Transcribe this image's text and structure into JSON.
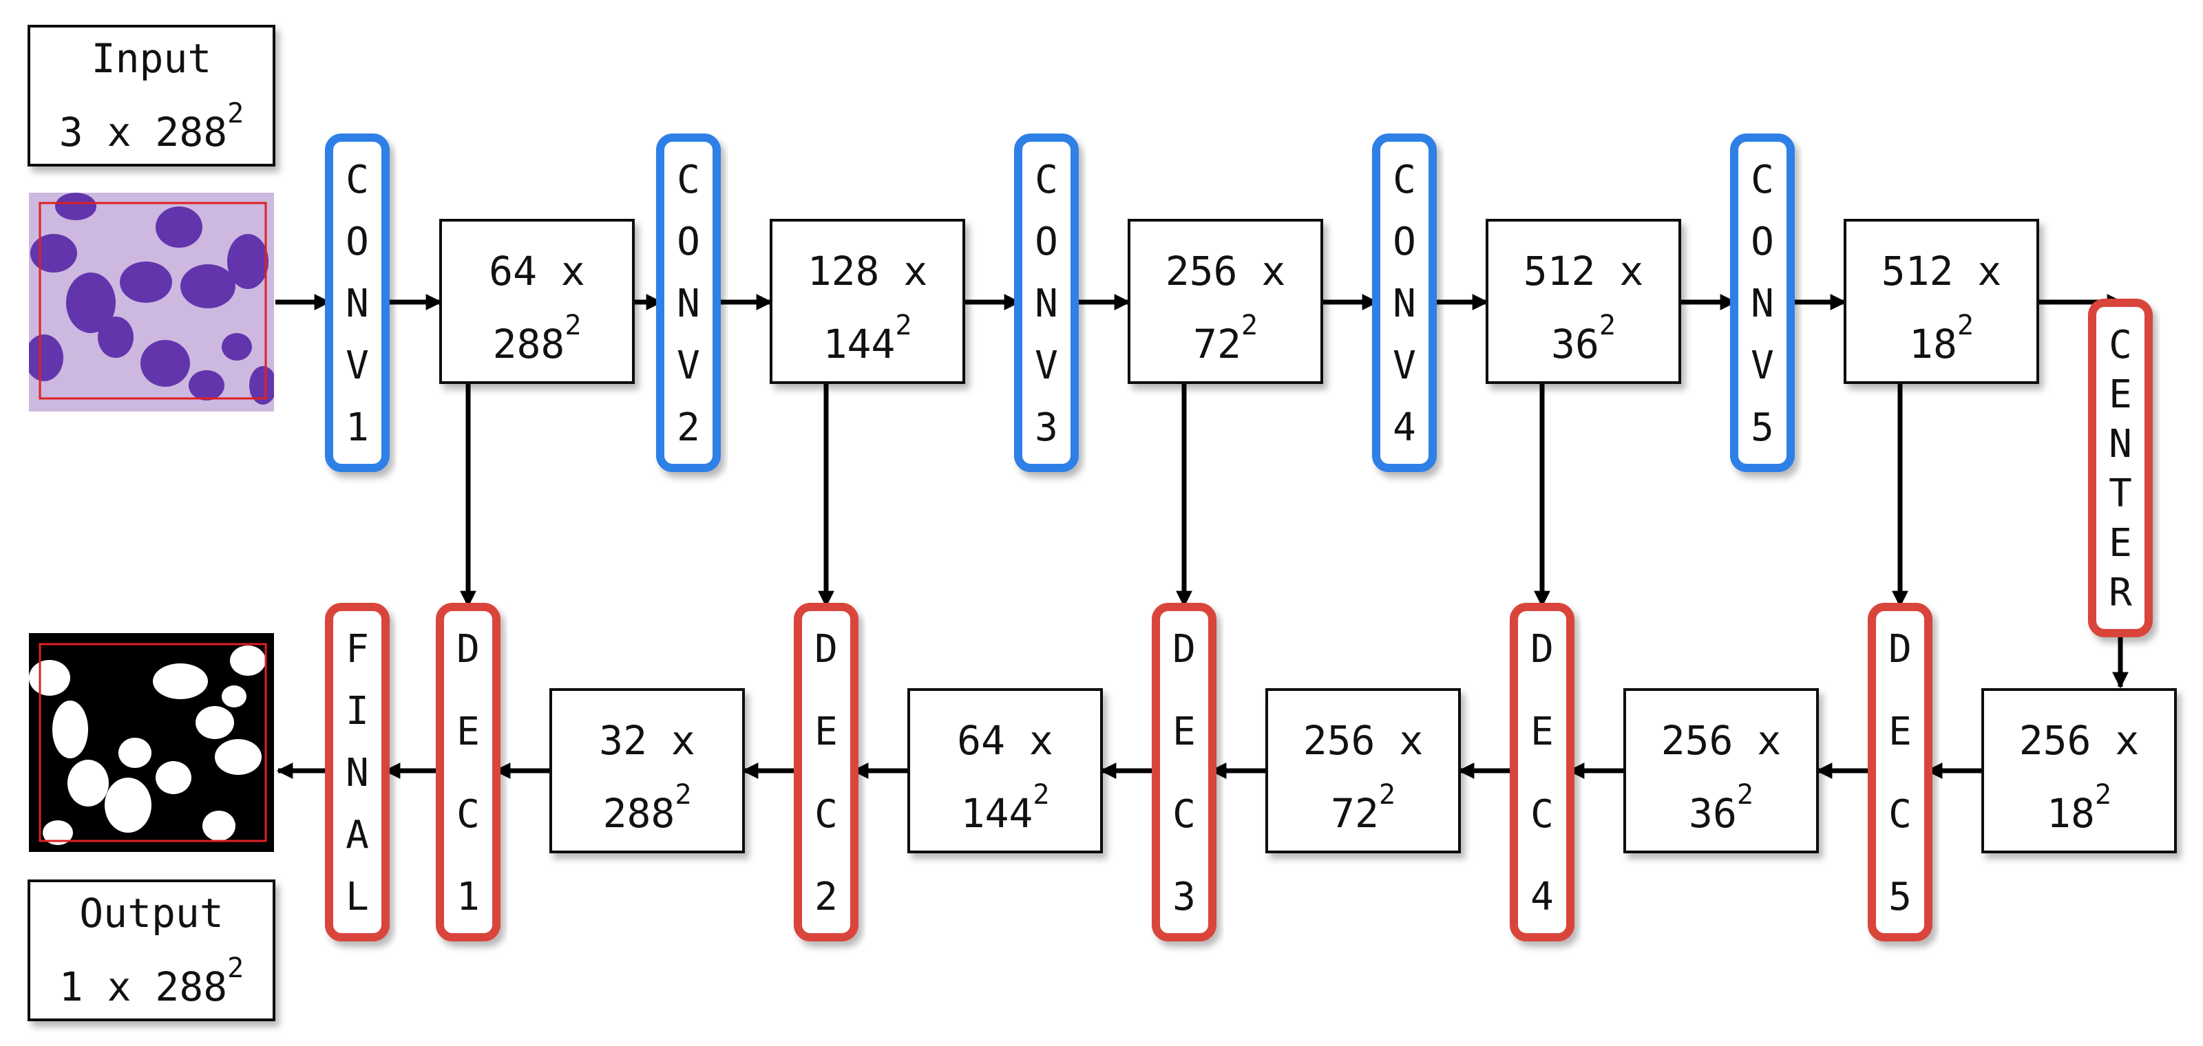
{
  "colors": {
    "encoder": "#2f80e6",
    "decoder": "#d9443a",
    "box_border": "#111111",
    "arrow": "#000000",
    "crop_frame": "#e02020",
    "cell_nucleus": "#5a2aa8",
    "cell_background": "#cdb8e0",
    "mask_background": "#000000",
    "mask_foreground": "#ffffff"
  },
  "input": {
    "title": "Input",
    "shape_base": "3 x 288",
    "shape_exp": "2"
  },
  "output": {
    "title": "Output",
    "shape_base": "1 x 288",
    "shape_exp": "2"
  },
  "encoder_blocks": [
    {
      "letters": [
        "C",
        "O",
        "N",
        "V",
        "1"
      ]
    },
    {
      "letters": [
        "C",
        "O",
        "N",
        "V",
        "2"
      ]
    },
    {
      "letters": [
        "C",
        "O",
        "N",
        "V",
        "3"
      ]
    },
    {
      "letters": [
        "C",
        "O",
        "N",
        "V",
        "4"
      ]
    },
    {
      "letters": [
        "C",
        "O",
        "N",
        "V",
        "5"
      ]
    }
  ],
  "center_block": {
    "letters": [
      "C",
      "E",
      "N",
      "T",
      "E",
      "R"
    ]
  },
  "decoder_blocks": [
    {
      "letters": [
        "D",
        "E",
        "C",
        "1"
      ]
    },
    {
      "letters": [
        "D",
        "E",
        "C",
        "2"
      ]
    },
    {
      "letters": [
        "D",
        "E",
        "C",
        "3"
      ]
    },
    {
      "letters": [
        "D",
        "E",
        "C",
        "4"
      ]
    },
    {
      "letters": [
        "D",
        "E",
        "C",
        "5"
      ]
    }
  ],
  "final_block": {
    "letters": [
      "F",
      "I",
      "N",
      "A",
      "L"
    ]
  },
  "encoder_features": [
    {
      "line1": "64 x",
      "base": "288",
      "exp": "2"
    },
    {
      "line1": "128 x",
      "base": "144",
      "exp": "2"
    },
    {
      "line1": "256 x",
      "base": "72",
      "exp": "2"
    },
    {
      "line1": "512 x",
      "base": "36",
      "exp": "2"
    },
    {
      "line1": "512 x",
      "base": "18",
      "exp": "2"
    }
  ],
  "decoder_features": [
    {
      "line1": "32 x",
      "base": "288",
      "exp": "2"
    },
    {
      "line1": "64 x",
      "base": "144",
      "exp": "2"
    },
    {
      "line1": "256 x",
      "base": "72",
      "exp": "2"
    },
    {
      "line1": "256 x",
      "base": "36",
      "exp": "2"
    },
    {
      "line1": "256 x",
      "base": "18",
      "exp": "2"
    }
  ]
}
